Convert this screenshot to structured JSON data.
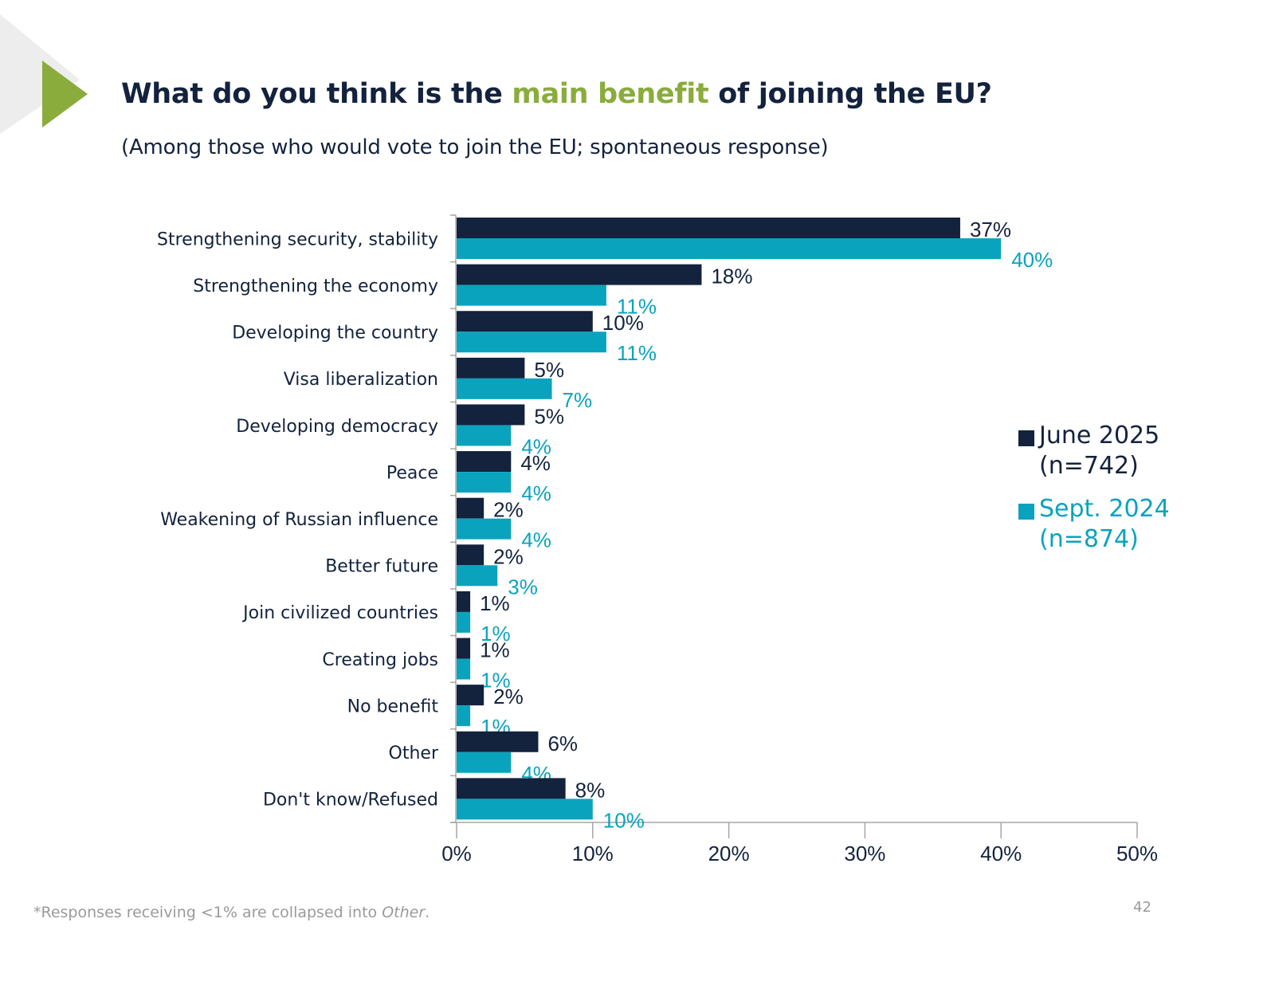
{
  "slide": {
    "title_prefix": "What do you think is the ",
    "title_highlight": "main benefit",
    "title_suffix": " of joining the EU?",
    "subtitle": "(Among those who would vote to join the EU; spontaneous response)",
    "footnote_prefix": "*Responses receiving <1% are collapsed into ",
    "footnote_italic": "Other",
    "footnote_suffix": ".",
    "page_number": "42",
    "colors": {
      "highlight": "#8aac3c",
      "navy": "#13223d",
      "teal": "#0aa3bd",
      "accent_triangle": "#8aac3c"
    }
  },
  "chart_data": {
    "type": "bar",
    "orientation": "horizontal",
    "title": "What do you think is the main benefit of joining the EU?",
    "subtitle": "(Among those who would vote to join the EU; spontaneous response)",
    "categories": [
      "Strengthening  security, stability",
      "Strengthening the economy",
      "Developing the country",
      "Visa liberalization",
      "Developing democracy",
      "Peace",
      "Weakening of Russian influence",
      "Better future",
      "Join civilized countries",
      "Creating jobs",
      "No benefit",
      "Other",
      "Don't know/Refused"
    ],
    "series": [
      {
        "name": "June 2025",
        "n_label": "(n=742)",
        "color": "#13223d",
        "values": [
          37,
          18,
          10,
          5,
          5,
          4,
          2,
          2,
          1,
          1,
          2,
          6,
          8
        ]
      },
      {
        "name": "Sept. 2024",
        "n_label": "(n=874)",
        "color": "#0aa3bd",
        "values": [
          40,
          11,
          11,
          7,
          4,
          4,
          4,
          3,
          1,
          1,
          1,
          4,
          10
        ]
      }
    ],
    "xlabel": "",
    "ylabel": "",
    "xlim": [
      0,
      50
    ],
    "xticks": [
      "0%",
      "10%",
      "20%",
      "30%",
      "40%",
      "50%"
    ],
    "value_suffix": "%",
    "grid": false,
    "legend_position": "right"
  }
}
